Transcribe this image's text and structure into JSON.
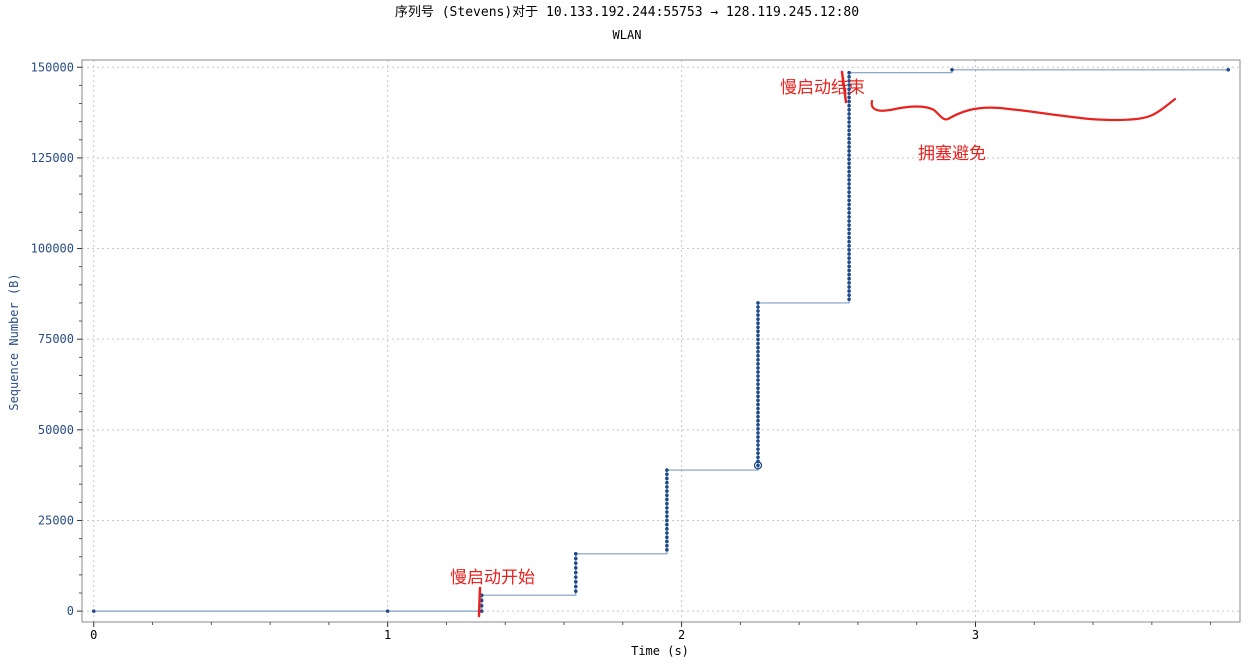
{
  "title": "序列号 (Stevens)对于 10.133.192.244:55753 → 128.119.245.12:80",
  "subtitle": "WLAN",
  "colors": {
    "axis_text": "#2a4f85",
    "points": "#1f4a8a",
    "step_line": "#7f9dc2",
    "grid": "#c8c8c8",
    "annotation": "#e8231f"
  },
  "annotations": [
    {
      "text": "慢启动开始"
    },
    {
      "text": "慢启动结束"
    },
    {
      "text": "拥塞避免"
    }
  ],
  "chart_data": {
    "type": "scatter",
    "title": "序列号 (Stevens)对于 10.133.192.244:55753 → 128.119.245.12:80",
    "subtitle": "WLAN",
    "xlabel": "Time (s)",
    "ylabel": "Sequence Number (B)",
    "xlim": [
      -0.04,
      3.9
    ],
    "ylim": [
      -3000,
      152000
    ],
    "x_ticks": [
      0,
      1,
      2,
      3
    ],
    "y_ticks": [
      0,
      25000,
      50000,
      75000,
      100000,
      125000,
      150000
    ],
    "grid": true,
    "selected_point": {
      "x": 2.26,
      "y": 40200
    },
    "bursts": [
      {
        "x": 0.0,
        "y_start": 0,
        "y_end": 0,
        "points": 1
      },
      {
        "x": 1.0,
        "y_start": 0,
        "y_end": 0,
        "points": 1
      },
      {
        "x": 1.32,
        "y_start": 0,
        "y_end": 4400,
        "points": 4
      },
      {
        "x": 1.64,
        "y_start": 5500,
        "y_end": 15800,
        "points": 9
      },
      {
        "x": 1.95,
        "y_start": 16900,
        "y_end": 38900,
        "points": 20
      },
      {
        "x": 2.26,
        "y_start": 40200,
        "y_end": 85000,
        "points": 41
      },
      {
        "x": 2.57,
        "y_start": 86000,
        "y_end": 148500,
        "points": 56
      },
      {
        "x": 2.92,
        "y_start": 149300,
        "y_end": 149300,
        "points": 1
      },
      {
        "x": 3.86,
        "y_start": 149300,
        "y_end": 149300,
        "points": 1
      }
    ]
  }
}
